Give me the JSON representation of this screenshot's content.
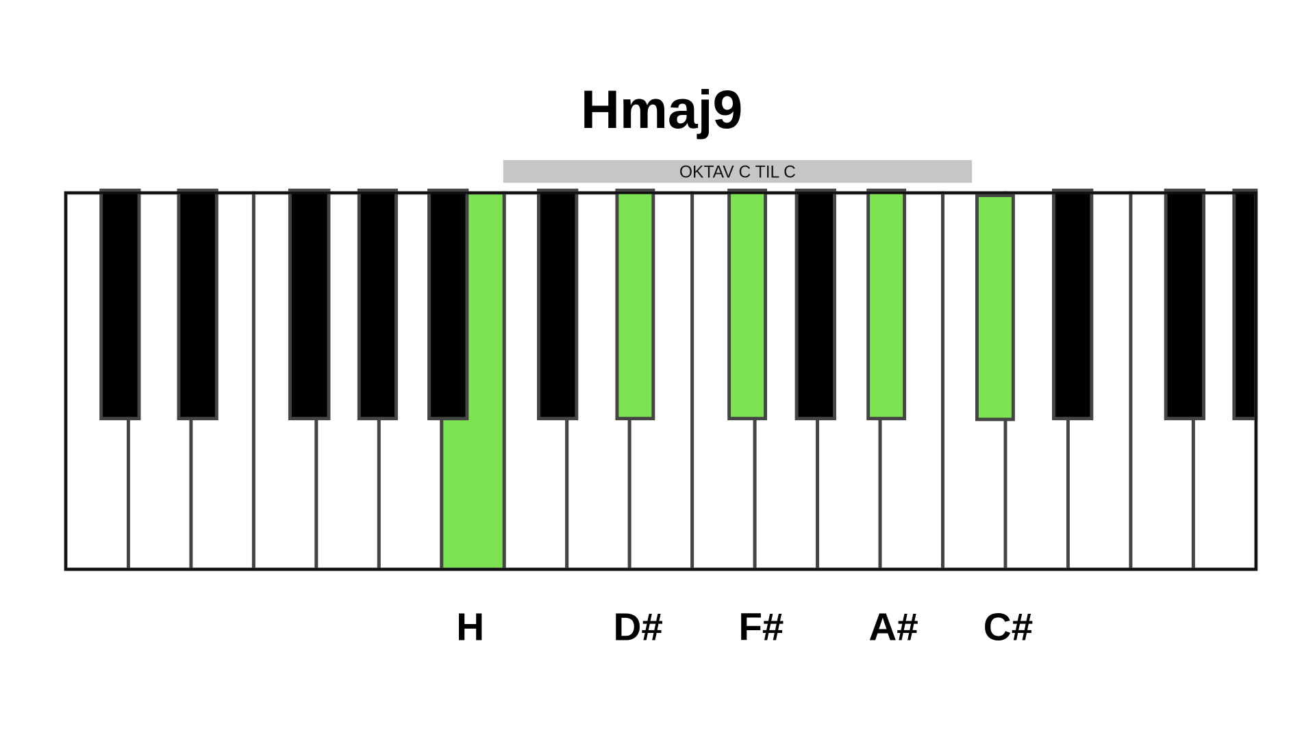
{
  "title": "Hmaj9",
  "octave_label": "OKTAV C TIL C",
  "note_labels": [
    "H",
    "D#",
    "F#",
    "A#",
    "C#"
  ]
}
